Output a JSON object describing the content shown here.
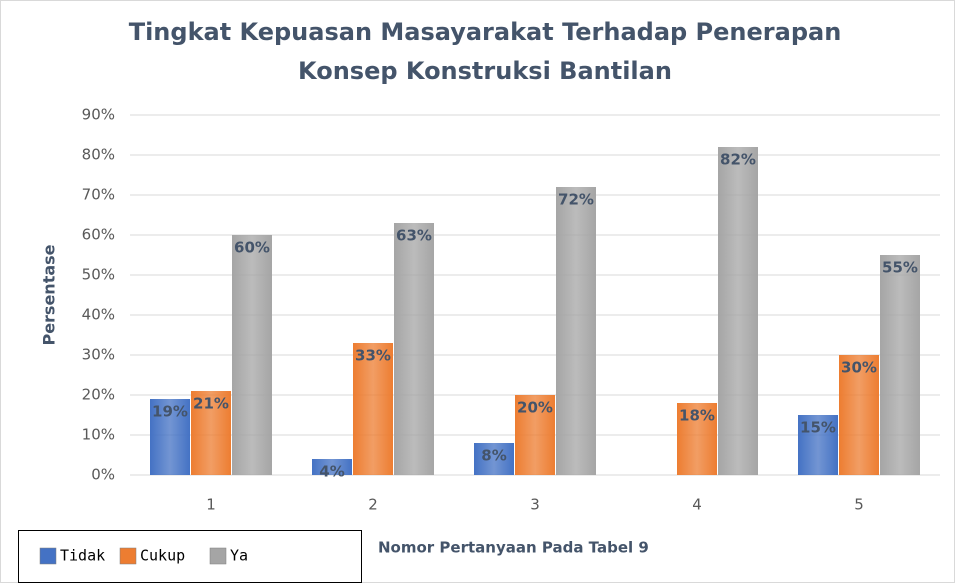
{
  "chart_data": {
    "type": "bar",
    "title": [
      "Tingkat Kepuasan Masayarakat Terhadap Penerapan",
      "Konsep Konstruksi Bantilan"
    ],
    "y_label": "Persentase",
    "x_label": "Nomor Pertanyaan Pada Tabel 9",
    "categories": [
      "1",
      "2",
      "3",
      "4",
      "5"
    ],
    "series": [
      {
        "name": "Tidak",
        "color": "#4472c4",
        "values": [
          19,
          4,
          8,
          null,
          15
        ],
        "value_labels": [
          "19%",
          "4%",
          "8%",
          null,
          "15%"
        ]
      },
      {
        "name": "Cukup",
        "color": "#ed7d31",
        "values": [
          21,
          33,
          20,
          18,
          30
        ],
        "value_labels": [
          "21%",
          "33%",
          "20%",
          "18%",
          "30%"
        ]
      },
      {
        "name": "Ya",
        "color": "#a5a5a5",
        "values": [
          60,
          63,
          72,
          82,
          55
        ],
        "value_labels": [
          "60%",
          "63%",
          "72%",
          "82%",
          "55%"
        ]
      }
    ],
    "ylim": [
      0,
      90
    ],
    "yticks": [
      {
        "value": 0,
        "label": "0%"
      },
      {
        "value": 10,
        "label": "10%"
      },
      {
        "value": 20,
        "label": "20%"
      },
      {
        "value": 30,
        "label": "30%"
      },
      {
        "value": 40,
        "label": "40%"
      },
      {
        "value": 50,
        "label": "50%"
      },
      {
        "value": 60,
        "label": "60%"
      },
      {
        "value": 70,
        "label": "70%"
      },
      {
        "value": 80,
        "label": "80%"
      },
      {
        "value": 90,
        "label": "90%"
      }
    ],
    "grid": true,
    "legend": "bottom-left"
  }
}
